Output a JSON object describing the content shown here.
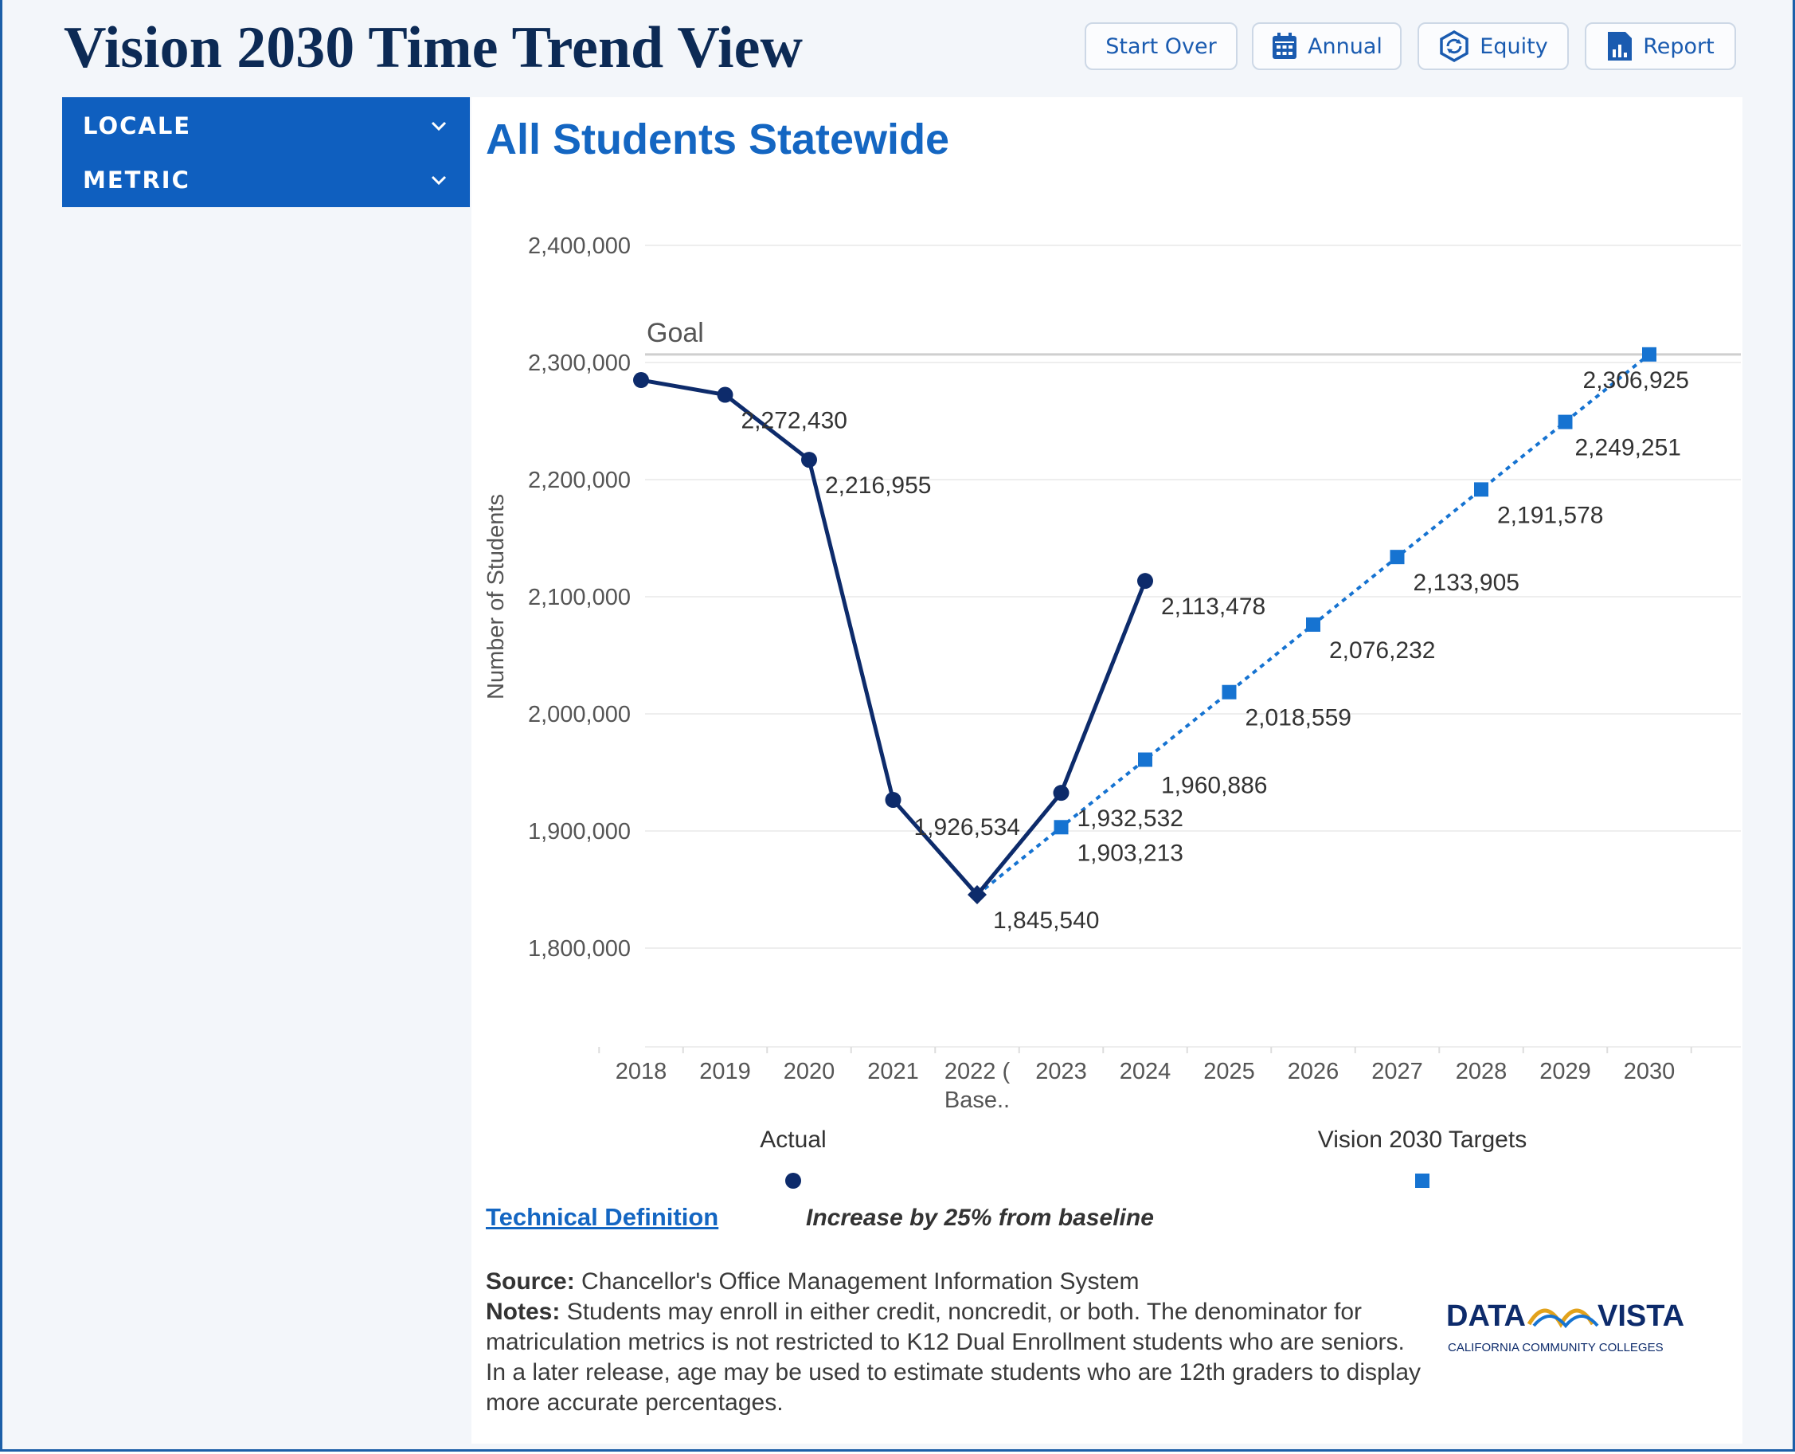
{
  "page": {
    "title": "Vision 2030 Time Trend View",
    "buttons": {
      "start_over": "Start Over",
      "annual": "Annual",
      "equity": "Equity",
      "report": "Report"
    }
  },
  "sidebar": {
    "items": [
      {
        "label": "LOCALE"
      },
      {
        "label": "METRIC"
      }
    ]
  },
  "main": {
    "chart_title": "All Students Statewide",
    "technical_definition_link": "Technical Definition",
    "technical_definition_text": "Increase by 25% from baseline",
    "source_label": "Source:",
    "source_text": "Chancellor's Office Management Information System",
    "notes_label": "Notes:",
    "notes_text": "Students may enroll in either credit, noncredit, or both. The denominator for matriculation metrics is not restricted to K12 Dual Enrollment students who are seniors. In a later release, age may be used to estimate students who are 12th graders to display more accurate percentages.",
    "logo": {
      "word_left": "DATA",
      "word_right": "VISTA",
      "tagline": "CALIFORNIA COMMUNITY COLLEGES"
    }
  },
  "colors": {
    "accent": "#0f5fbf",
    "actual_series": "#0d2b6b",
    "target_series": "#1673d1",
    "title": "#0c2a55"
  },
  "chart_data": {
    "type": "line",
    "ylabel": "Number of Students",
    "xlabel": "",
    "ylim": [
      1800000,
      2400000
    ],
    "yticks": [
      "2,400,000",
      "2,300,000",
      "2,200,000",
      "2,100,000",
      "2,000,000",
      "1,900,000",
      "1,800,000"
    ],
    "ytick_values": [
      2400000,
      2300000,
      2200000,
      2100000,
      2000000,
      1900000,
      1800000
    ],
    "categories": [
      "2018",
      "2019",
      "2020",
      "2021",
      "2022 ( Base..",
      "2023",
      "2024",
      "2025",
      "2026",
      "2027",
      "2028",
      "2029",
      "2030"
    ],
    "goal": {
      "label": "Goal",
      "value": 2306925
    },
    "legend_placement": "bottom",
    "series": [
      {
        "name": "Actual",
        "marker": "circle",
        "style": "solid",
        "values": [
          2285000,
          2272430,
          2216955,
          1926534,
          1845540,
          1932532,
          2113478,
          null,
          null,
          null,
          null,
          null,
          null
        ],
        "labels": [
          null,
          "2,272,430",
          "2,216,955",
          "1,926,534",
          null,
          "1,932,532",
          "2,113,478",
          null,
          null,
          null,
          null,
          null,
          null
        ]
      },
      {
        "name": "Vision 2030 Targets",
        "marker": "square",
        "style": "dotted",
        "values": [
          null,
          null,
          null,
          null,
          1845540,
          1903213,
          1960886,
          2018559,
          2076232,
          2133905,
          2191578,
          2249251,
          2306925
        ],
        "labels": [
          null,
          null,
          null,
          null,
          "1,845,540",
          "1,903,213",
          "1,960,886",
          "2,018,559",
          "2,076,232",
          "2,133,905",
          "2,191,578",
          "2,249,251",
          "2,306,925"
        ]
      }
    ]
  }
}
